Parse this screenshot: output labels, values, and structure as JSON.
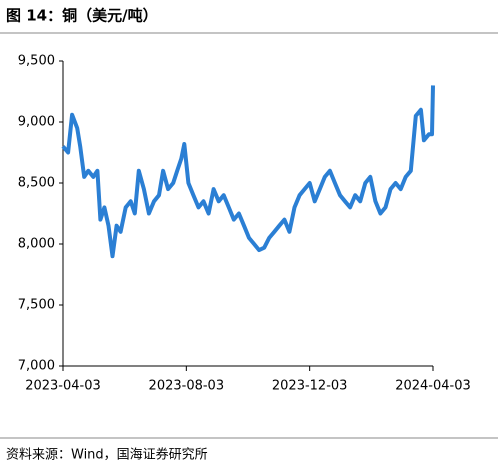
{
  "chart_data": {
    "type": "line",
    "title": "图 14：铜（美元/吨）",
    "source": "资料来源：Wind，国海证券研究所",
    "x": [
      "2023-04-03",
      "2023-04-08",
      "2023-04-12",
      "2023-04-17",
      "2023-04-20",
      "2023-04-24",
      "2023-04-28",
      "2023-05-03",
      "2023-05-07",
      "2023-05-10",
      "2023-05-14",
      "2023-05-18",
      "2023-05-22",
      "2023-05-26",
      "2023-05-30",
      "2023-06-04",
      "2023-06-09",
      "2023-06-13",
      "2023-06-17",
      "2023-06-22",
      "2023-06-27",
      "2023-07-02",
      "2023-07-07",
      "2023-07-11",
      "2023-07-16",
      "2023-07-21",
      "2023-07-25",
      "2023-07-29",
      "2023-08-01",
      "2023-08-05",
      "2023-08-10",
      "2023-08-15",
      "2023-08-20",
      "2023-08-25",
      "2023-08-30",
      "2023-09-04",
      "2023-09-09",
      "2023-09-14",
      "2023-09-19",
      "2023-09-24",
      "2023-09-29",
      "2023-10-04",
      "2023-10-09",
      "2023-10-14",
      "2023-10-19",
      "2023-10-24",
      "2023-10-29",
      "2023-11-03",
      "2023-11-08",
      "2023-11-13",
      "2023-11-18",
      "2023-11-23",
      "2023-11-28",
      "2023-12-03",
      "2023-12-08",
      "2023-12-13",
      "2023-12-18",
      "2023-12-23",
      "2023-12-28",
      "2024-01-02",
      "2024-01-07",
      "2024-01-12",
      "2024-01-17",
      "2024-01-22",
      "2024-01-27",
      "2024-02-01",
      "2024-02-06",
      "2024-02-11",
      "2024-02-16",
      "2024-02-21",
      "2024-02-26",
      "2024-03-02",
      "2024-03-07",
      "2024-03-12",
      "2024-03-17",
      "2024-03-22",
      "2024-03-25",
      "2024-03-30",
      "2024-04-02",
      "2024-04-03"
    ],
    "series": [
      {
        "name": "铜",
        "color": "#2b7fd4",
        "values": [
          8800,
          8750,
          9060,
          8950,
          8800,
          8550,
          8600,
          8550,
          8600,
          8200,
          8300,
          8150,
          7900,
          8150,
          8100,
          8300,
          8350,
          8250,
          8600,
          8450,
          8250,
          8350,
          8400,
          8600,
          8450,
          8500,
          8600,
          8700,
          8820,
          8500,
          8400,
          8300,
          8350,
          8250,
          8450,
          8350,
          8400,
          8300,
          8200,
          8250,
          8150,
          8050,
          8000,
          7950,
          7970,
          8050,
          8100,
          8150,
          8200,
          8100,
          8300,
          8400,
          8450,
          8500,
          8350,
          8450,
          8550,
          8600,
          8500,
          8400,
          8350,
          8300,
          8400,
          8350,
          8500,
          8550,
          8350,
          8250,
          8300,
          8450,
          8500,
          8450,
          8550,
          8600,
          9050,
          9100,
          8850,
          8900,
          8900,
          9300
        ]
      }
    ],
    "xlim": [
      "2023-04-03",
      "2024-04-03"
    ],
    "xticks": [
      "2023-04-03",
      "2023-08-03",
      "2023-12-03",
      "2024-04-03"
    ],
    "ylim": [
      7000,
      9500
    ],
    "yticks": [
      {
        "value": 7000,
        "label": "7,000"
      },
      {
        "value": 7500,
        "label": "7,500"
      },
      {
        "value": 8000,
        "label": "8,000"
      },
      {
        "value": 8500,
        "label": "8,500"
      },
      {
        "value": 9000,
        "label": "9,000"
      },
      {
        "value": 9500,
        "label": "9,500"
      }
    ]
  }
}
